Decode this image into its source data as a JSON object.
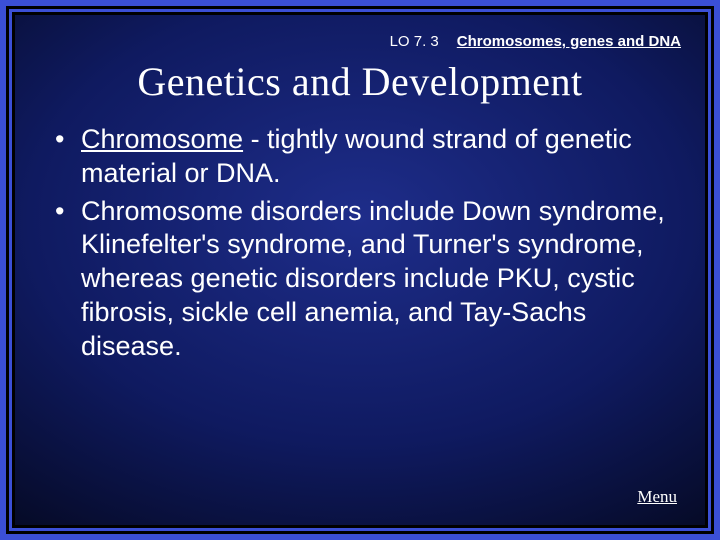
{
  "header": {
    "lo_label": "LO 7. 3",
    "topic_link": "Chromosomes, genes and DNA"
  },
  "title": "Genetics and Development",
  "bullets": [
    {
      "term": "Chromosome",
      "rest": " - tightly wound strand of genetic material or DNA."
    },
    {
      "term": "",
      "rest": "Chromosome disorders include Down syndrome, Klinefelter's syndrome, and Turner's syndrome, whereas genetic disorders include PKU, cystic fibrosis, sickle cell anemia, and Tay-Sachs disease."
    }
  ],
  "menu_label": "Menu",
  "styling": {
    "frame_color": "#3b4fd6",
    "border_color": "#000000",
    "bg_gradient_inner": "#1e2d8a",
    "bg_gradient_mid": "#0f1a60",
    "bg_gradient_outer": "#020410",
    "text_color": "#ffffff",
    "title_fontsize": 40,
    "body_fontsize": 27,
    "header_fontsize": 15,
    "menu_fontsize": 17
  }
}
